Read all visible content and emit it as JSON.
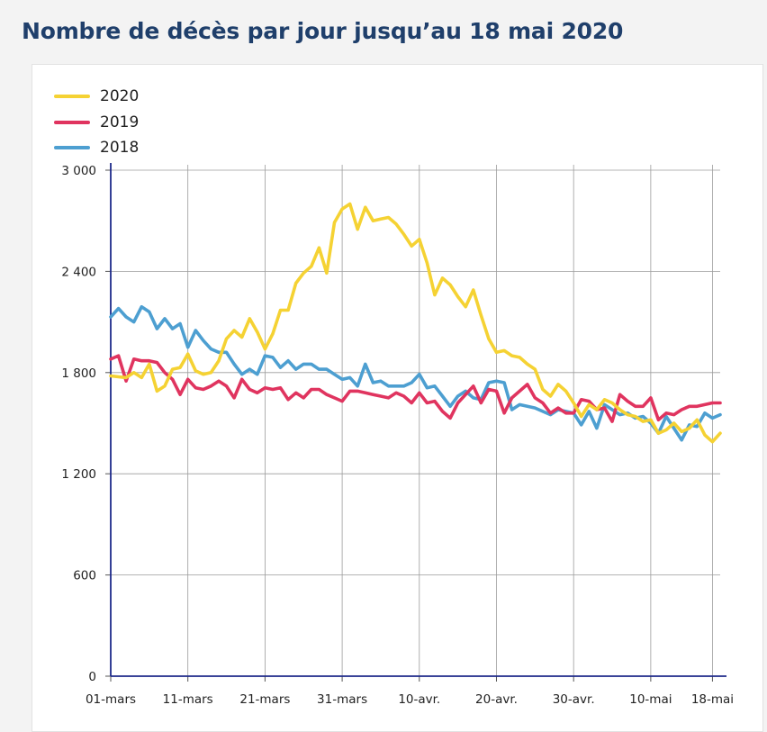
{
  "page": {
    "title": "Nombre de décès par jour jusqu’au 18 mai 2020"
  },
  "colors": {
    "2020": "#f5d233",
    "2019": "#e0345f",
    "2018": "#4d9fd1",
    "axis": "#1e2a8a",
    "grid": "#9c9c9c"
  },
  "chart_data": {
    "type": "line",
    "title": "Nombre de décès par jour jusqu’au 18 mai 2020",
    "xlabel": "",
    "ylabel": "",
    "ylim": [
      0,
      3000
    ],
    "yticks": [
      0,
      600,
      1200,
      1800,
      2400,
      3000
    ],
    "ytick_labels": [
      "0",
      "600",
      "1 200",
      "1 800",
      "2 400",
      "3 000"
    ],
    "xticks": [
      0,
      10,
      20,
      30,
      40,
      50,
      60,
      70,
      78
    ],
    "xtick_labels": [
      "01-mars",
      "11-mars",
      "21-mars",
      "31-mars",
      "10-avr.",
      "20-avr.",
      "30-avr.",
      "10-mai",
      "18-mai"
    ],
    "x_start": "01-mars",
    "grid": true,
    "legend_position": "top-left",
    "series": [
      {
        "name": "2020",
        "color": "#f5d233",
        "values": [
          1780,
          1775,
          1770,
          1800,
          1770,
          1850,
          1690,
          1720,
          1820,
          1830,
          1910,
          1810,
          1790,
          1800,
          1870,
          2000,
          2050,
          2010,
          2120,
          2040,
          1940,
          2030,
          2170,
          2170,
          2330,
          2390,
          2430,
          2540,
          2390,
          2690,
          2770,
          2800,
          2650,
          2780,
          2700,
          2710,
          2720,
          2680,
          2620,
          2550,
          2590,
          2450,
          2260,
          2360,
          2320,
          2250,
          2190,
          2290,
          2140,
          2000,
          1920,
          1930,
          1900,
          1890,
          1850,
          1820,
          1700,
          1660,
          1730,
          1690,
          1620,
          1540,
          1610,
          1580,
          1640,
          1620,
          1580,
          1550,
          1540,
          1510,
          1520,
          1440,
          1460,
          1500,
          1450,
          1470,
          1520,
          1430,
          1390,
          1440
        ]
      },
      {
        "name": "2019",
        "color": "#e0345f",
        "values": [
          1880,
          1900,
          1750,
          1880,
          1870,
          1870,
          1860,
          1800,
          1760,
          1670,
          1760,
          1710,
          1700,
          1720,
          1750,
          1720,
          1650,
          1760,
          1700,
          1680,
          1710,
          1700,
          1710,
          1640,
          1680,
          1650,
          1700,
          1700,
          1670,
          1650,
          1630,
          1690,
          1690,
          1680,
          1670,
          1660,
          1650,
          1680,
          1660,
          1620,
          1680,
          1620,
          1630,
          1570,
          1530,
          1620,
          1670,
          1720,
          1620,
          1700,
          1690,
          1560,
          1650,
          1690,
          1730,
          1650,
          1620,
          1560,
          1590,
          1560,
          1560,
          1640,
          1630,
          1580,
          1590,
          1510,
          1670,
          1630,
          1600,
          1600,
          1650,
          1520,
          1560,
          1550,
          1580,
          1600,
          1600,
          1610,
          1620,
          1620
        ]
      },
      {
        "name": "2018",
        "color": "#4d9fd1",
        "values": [
          2130,
          2180,
          2130,
          2100,
          2190,
          2160,
          2060,
          2120,
          2060,
          2090,
          1950,
          2050,
          1990,
          1940,
          1920,
          1920,
          1850,
          1790,
          1820,
          1790,
          1900,
          1890,
          1830,
          1870,
          1820,
          1850,
          1850,
          1820,
          1820,
          1790,
          1760,
          1770,
          1720,
          1850,
          1740,
          1750,
          1720,
          1720,
          1720,
          1740,
          1790,
          1710,
          1720,
          1660,
          1600,
          1660,
          1690,
          1650,
          1640,
          1740,
          1750,
          1740,
          1580,
          1610,
          1600,
          1590,
          1570,
          1550,
          1580,
          1570,
          1560,
          1490,
          1570,
          1470,
          1610,
          1580,
          1550,
          1560,
          1530,
          1540,
          1500,
          1440,
          1540,
          1470,
          1400,
          1490,
          1480,
          1560,
          1530,
          1550
        ]
      }
    ]
  }
}
